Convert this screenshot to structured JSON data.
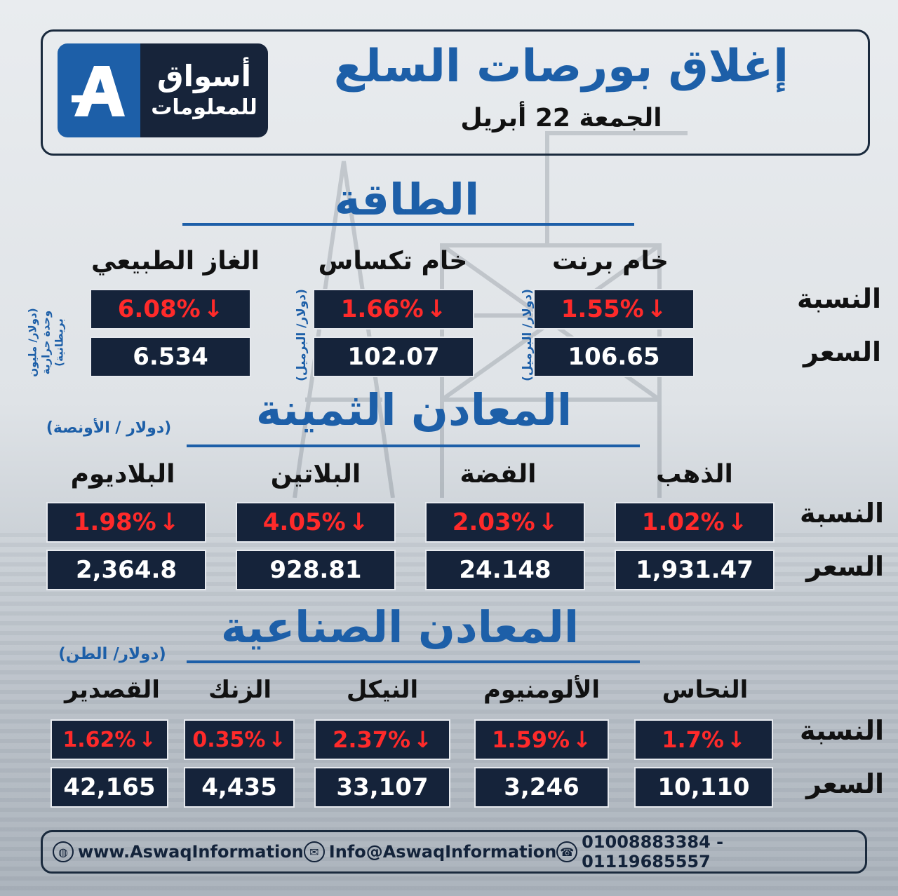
{
  "header": {
    "title": "إغلاق بورصات السلع",
    "date": "الجمعة 22 أبريل",
    "logo": {
      "line1": "أسواق",
      "line2": "للمعلومات",
      "mark": "A",
      "brand_color": "#1d5fa8"
    }
  },
  "labels": {
    "percent": "النسبة",
    "price": "السعر"
  },
  "energy": {
    "title": "الطاقة",
    "items": [
      {
        "name": "خام برنت",
        "change": "1.55%",
        "price": "106.65",
        "unit": "(دولار/ البرميل)"
      },
      {
        "name": "خام تكساس",
        "change": "1.66%",
        "price": "102.07",
        "unit": "(دولار/ البرميل)"
      },
      {
        "name": "الغاز الطبيعي",
        "change": "6.08%",
        "price": "6.534",
        "unit_l1": "(دولار/ مليون",
        "unit_l2": "وحدة حرارية",
        "unit_l3": "بريطانية)"
      }
    ]
  },
  "precious": {
    "title": "المعادن الثمينة",
    "unit": "(دولار / الأونصة)",
    "items": [
      {
        "name": "الذهب",
        "change": "1.02%",
        "price": "1,931.47"
      },
      {
        "name": "الفضة",
        "change": "2.03%",
        "price": "24.148"
      },
      {
        "name": "البلاتين",
        "change": "4.05%",
        "price": "928.81"
      },
      {
        "name": "البلاديوم",
        "change": "1.98%",
        "price": "2,364.8"
      }
    ]
  },
  "industrial": {
    "title": "المعادن الصناعية",
    "unit": "(دولار/ الطن)",
    "items": [
      {
        "name": "النحاس",
        "change": "1.7%",
        "price": "10,110"
      },
      {
        "name": "الألومنيوم",
        "change": "1.59%",
        "price": "3,246"
      },
      {
        "name": "النيكل",
        "change": "2.37%",
        "price": "33,107"
      },
      {
        "name": "الزنك",
        "change": "0.35%",
        "price": "4,435"
      },
      {
        "name": "القصدير",
        "change": "1.62%",
        "price": "42,165"
      }
    ]
  },
  "footer": {
    "website": "www.AswaqInformation",
    "email": "Info@AswaqInformation",
    "phones": "01008883384 - 01119685557",
    "icons": [
      "globe-icon",
      "mail-icon",
      "phone-icon"
    ]
  },
  "colors": {
    "accent": "#1d5fa8",
    "box": "#15233a",
    "down": "#ff2a2a"
  }
}
